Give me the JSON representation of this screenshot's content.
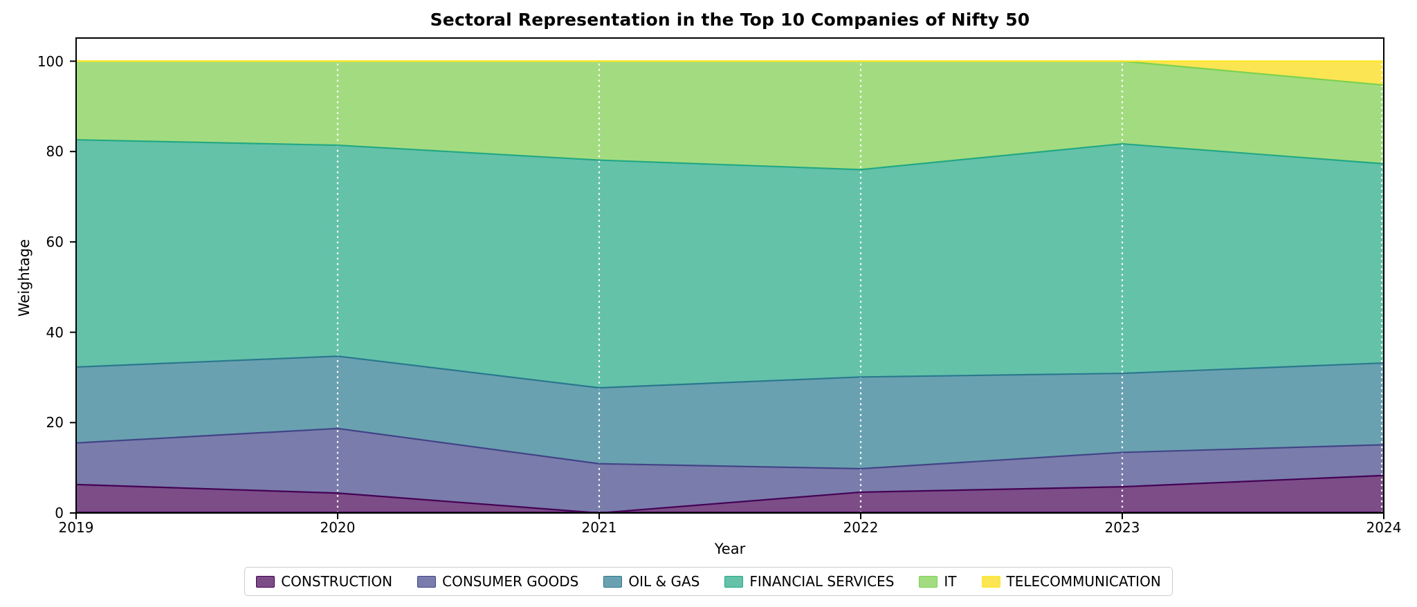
{
  "chart_data": {
    "type": "area",
    "stacked": true,
    "title": "Sectoral Representation in the Top 10 Companies of Nifty 50",
    "xlabel": "Year",
    "ylabel": "Weightage",
    "x": [
      2019,
      2020,
      2021,
      2022,
      2023,
      2024
    ],
    "xticks": [
      "2019",
      "2020",
      "2021",
      "2022",
      "2023",
      "2024"
    ],
    "ylim": [
      0,
      100
    ],
    "yticks": [
      0,
      20,
      40,
      60,
      80,
      100
    ],
    "grid": "vertical dotted white gridlines at year positions",
    "legend_position": "bottom-center",
    "frame_color": "#000000",
    "gridline_color": "#ffffff",
    "series": [
      {
        "name": "CONSTRUCTION",
        "values": [
          6.3,
          4.4,
          0.0,
          4.6,
          5.8,
          8.3
        ],
        "fill": "#7C4D87",
        "edge": "#440154"
      },
      {
        "name": "CONSUMER GOODS",
        "values": [
          9.2,
          14.3,
          10.9,
          5.2,
          7.6,
          6.8
        ],
        "fill": "#7A7CAB",
        "edge": "#414487"
      },
      {
        "name": "OIL & GAS",
        "values": [
          16.8,
          16.0,
          16.8,
          20.3,
          17.5,
          18.1
        ],
        "fill": "#6AA1B0",
        "edge": "#2A788E"
      },
      {
        "name": "FINANCIAL SERVICES",
        "values": [
          50.3,
          46.7,
          50.4,
          45.9,
          50.8,
          44.1
        ],
        "fill": "#64C2A9",
        "edge": "#22A884"
      },
      {
        "name": "IT",
        "values": [
          17.4,
          18.6,
          21.9,
          24.0,
          18.3,
          17.4
        ],
        "fill": "#A3DC80",
        "edge": "#7AD151"
      },
      {
        "name": "TELECOMMUNICATION",
        "values": [
          0.0,
          0.0,
          0.0,
          0.0,
          0.0,
          5.3
        ],
        "fill": "#FBE553",
        "edge": "#FDE725"
      }
    ]
  }
}
